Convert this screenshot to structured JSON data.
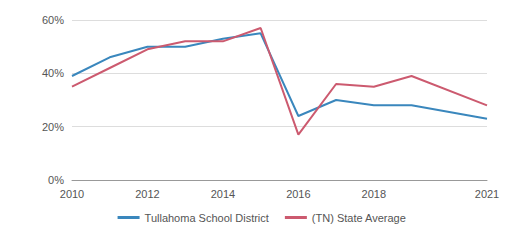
{
  "chart_data": {
    "type": "line",
    "x": [
      2010,
      2011,
      2012,
      2013,
      2014,
      2015,
      2016,
      2017,
      2018,
      2019,
      2021
    ],
    "series": [
      {
        "name": "Tullahoma School District",
        "color": "#3a87bd",
        "values": [
          39,
          46,
          50,
          50,
          53,
          55,
          24,
          30,
          28,
          28,
          23
        ]
      },
      {
        "name": "(TN) State Average",
        "color": "#cc5a6f",
        "values": [
          35,
          42,
          49,
          52,
          52,
          57,
          17,
          36,
          35,
          39,
          28
        ]
      }
    ],
    "xlim": [
      2010,
      2021
    ],
    "xticks": [
      2010,
      2012,
      2014,
      2016,
      2018,
      2021
    ],
    "ylim": [
      0,
      60
    ],
    "yticks": [
      {
        "value": 0,
        "label": "0%"
      },
      {
        "value": 20,
        "label": "20%"
      },
      {
        "value": 40,
        "label": "40%"
      },
      {
        "value": 60,
        "label": "60%"
      }
    ],
    "grid": true,
    "legend": "bottom"
  }
}
